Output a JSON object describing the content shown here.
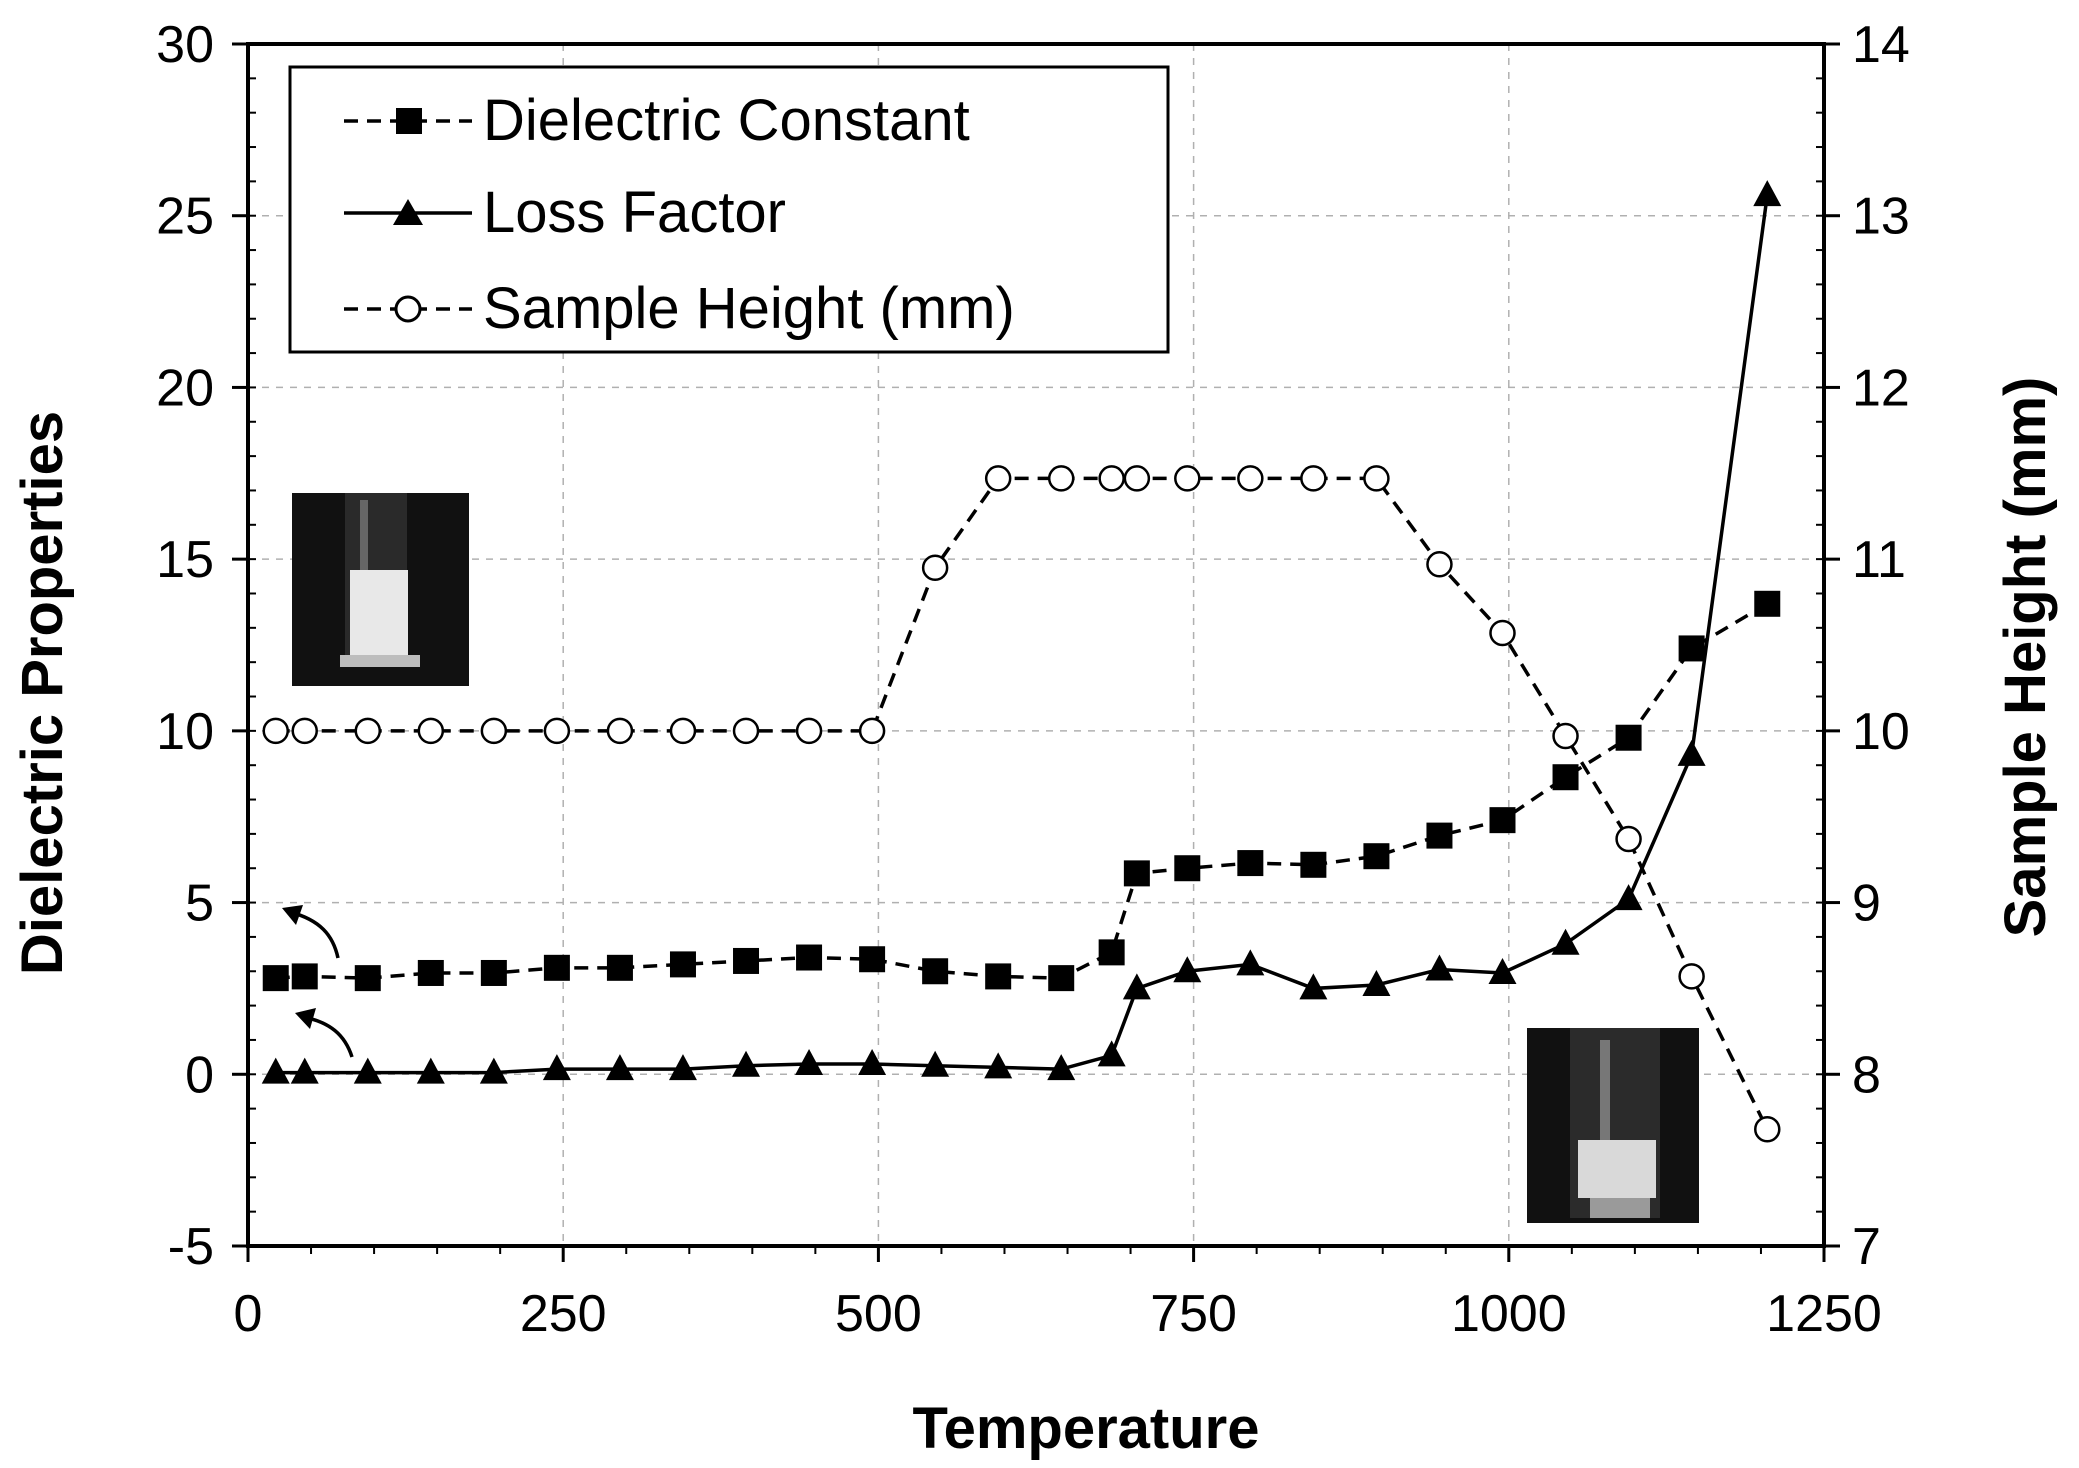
{
  "chart_data": {
    "type": "line",
    "title": "",
    "xlabel": "Temperature",
    "ylabel_left": "Dielectric Properties",
    "ylabel_right": "Sample Height (mm)",
    "xlim": [
      0,
      1250
    ],
    "ylim_left": [
      -5,
      30
    ],
    "ylim_right": [
      7,
      14
    ],
    "x_ticks": [
      "0",
      "250",
      "500",
      "750",
      "1000",
      "1250"
    ],
    "y_left_ticks": [
      "30",
      "25",
      "20",
      "15",
      "10",
      "5",
      "0",
      "-5"
    ],
    "y_right_ticks": [
      "14",
      "13",
      "12",
      "11",
      "10",
      "9",
      "8",
      "7"
    ],
    "grid": true,
    "legend_position": "top-left",
    "series": [
      {
        "name": "Dielectric Constant",
        "axis": "left",
        "line": "dashed",
        "marker": "filled-square",
        "x": [
          22,
          45,
          95,
          145,
          195,
          245,
          295,
          345,
          395,
          445,
          495,
          545,
          595,
          645,
          685,
          705,
          745,
          795,
          845,
          895,
          945,
          995,
          1045,
          1095,
          1145,
          1205
        ],
        "y": [
          2.8,
          2.85,
          2.8,
          2.95,
          2.95,
          3.1,
          3.1,
          3.2,
          3.3,
          3.4,
          3.35,
          3.0,
          2.85,
          2.8,
          3.55,
          5.85,
          6.0,
          6.15,
          6.1,
          6.35,
          6.95,
          7.4,
          8.65,
          9.8,
          12.4,
          13.7
        ]
      },
      {
        "name": "Loss Factor",
        "axis": "left",
        "line": "solid",
        "marker": "filled-triangle",
        "x": [
          22,
          45,
          95,
          145,
          195,
          245,
          295,
          345,
          395,
          445,
          495,
          545,
          595,
          645,
          685,
          705,
          745,
          795,
          845,
          895,
          945,
          995,
          1045,
          1095,
          1145,
          1205
        ],
        "y": [
          0.05,
          0.05,
          0.05,
          0.05,
          0.05,
          0.15,
          0.15,
          0.15,
          0.25,
          0.3,
          0.3,
          0.25,
          0.2,
          0.15,
          0.55,
          2.5,
          3.0,
          3.2,
          2.5,
          2.6,
          3.05,
          2.95,
          3.8,
          5.1,
          9.3,
          25.6
        ]
      },
      {
        "name": "Sample Height (mm)",
        "axis": "right",
        "line": "dashed",
        "marker": "open-circle",
        "x": [
          22,
          45,
          95,
          145,
          195,
          245,
          295,
          345,
          395,
          445,
          495,
          545,
          595,
          645,
          685,
          705,
          745,
          795,
          845,
          895,
          945,
          995,
          1045,
          1095,
          1145,
          1205
        ],
        "y": [
          10.0,
          10.0,
          10.0,
          10.0,
          10.0,
          10.0,
          10.0,
          10.0,
          10.0,
          10.0,
          10.0,
          10.95,
          11.47,
          11.47,
          11.47,
          11.47,
          11.47,
          11.47,
          11.47,
          11.47,
          10.97,
          10.57,
          9.97,
          9.37,
          8.57,
          7.68
        ]
      }
    ]
  }
}
